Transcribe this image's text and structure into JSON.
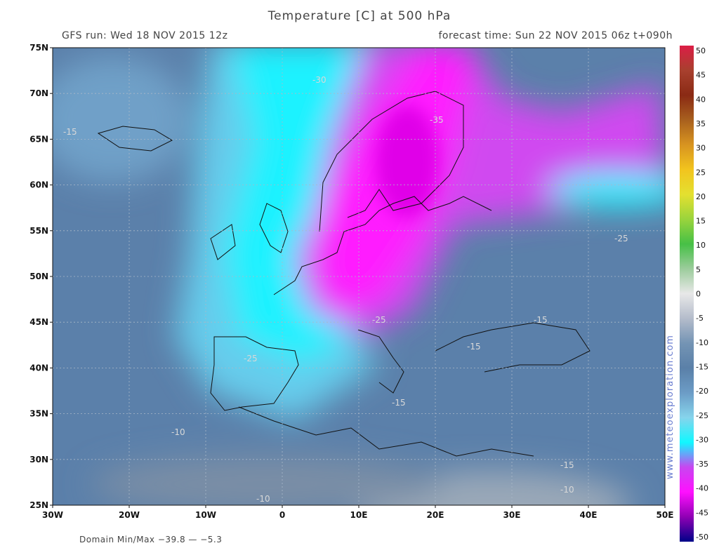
{
  "header": {
    "title": "Temperature [C] at 500 hPa",
    "run": "GFS run: Wed 18 NOV 2015 12z",
    "forecast": "forecast time: Sun 22 NOV 2015 06z  t+090h"
  },
  "map": {
    "lat_labels": [
      "75N",
      "70N",
      "65N",
      "60N",
      "55N",
      "50N",
      "45N",
      "40N",
      "35N",
      "30N",
      "25N"
    ],
    "lon_labels": [
      "30W",
      "20W",
      "10W",
      "0",
      "10E",
      "20E",
      "30E",
      "40E",
      "50E"
    ],
    "contour_labels": [
      "-30",
      "-15",
      "-35",
      "-25",
      "-15",
      "-15",
      "-25",
      "-15",
      "-10",
      "-10",
      "-15",
      "-10",
      "-25"
    ]
  },
  "colorbar": {
    "labels": [
      50,
      45,
      40,
      35,
      30,
      25,
      20,
      15,
      10,
      5,
      0,
      -5,
      -10,
      -15,
      -20,
      -25,
      -30,
      -35,
      -40,
      -45,
      -50
    ]
  },
  "footer": {
    "domain_minmax": "Domain Min/Max −39.8 — −5.3",
    "watermark": "www.meteoexploration.com"
  }
}
